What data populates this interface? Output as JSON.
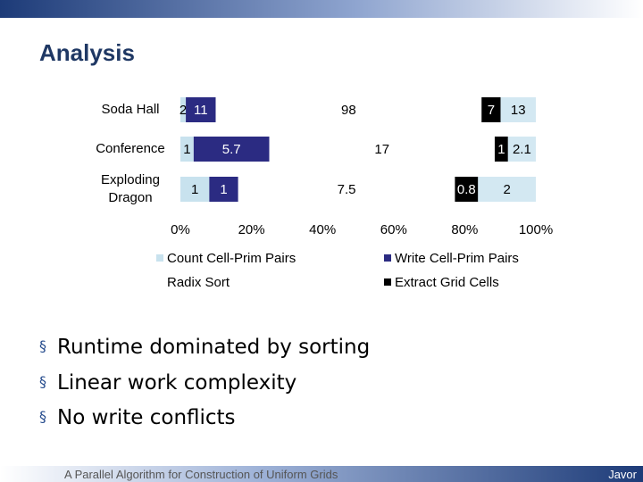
{
  "header": {
    "title": "Analysis"
  },
  "chart_data": {
    "type": "stacked-percent-bar",
    "categories": [
      "Soda Hall",
      "Conference",
      "Exploding Dragon"
    ],
    "series": [
      {
        "name": "Count Cell-Prim Pairs",
        "color": "#c8e2ee",
        "values": [
          2,
          1,
          1
        ]
      },
      {
        "name": "Write Cell-Prim Pairs",
        "color": "#2b2b82",
        "values": [
          11,
          5.7,
          1
        ]
      },
      {
        "name": "Radix Sort",
        "color": "#ffffff",
        "values": [
          98,
          17,
          7.5
        ]
      },
      {
        "name": "Extract Grid Cells",
        "color": "#000000",
        "values": [
          7,
          1,
          0.8
        ]
      },
      {
        "color": "#d3e8f2",
        "values": [
          13,
          2.1,
          2
        ]
      }
    ],
    "xlim": [
      0,
      100
    ],
    "xticks": [
      {
        "value": 0,
        "label": "0%"
      },
      {
        "value": 20,
        "label": "20%"
      },
      {
        "value": 40,
        "label": "40%"
      },
      {
        "value": 60,
        "label": "60%"
      },
      {
        "value": 80,
        "label": "80%"
      },
      {
        "value": 100,
        "label": "100%"
      }
    ]
  },
  "bullets": [
    "Runtime dominated by sorting",
    "Linear work complexity",
    "No write conflicts"
  ],
  "footer": {
    "text": "A Parallel Algorithm for Construction of Uniform Grids",
    "author": "Javor"
  }
}
